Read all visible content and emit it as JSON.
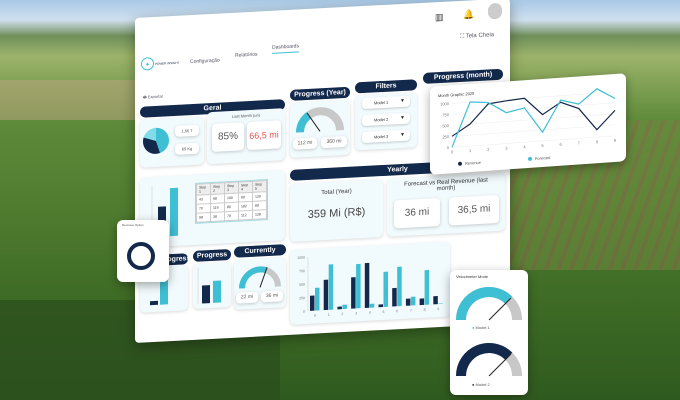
{
  "header": {
    "nav": [
      "Configuração",
      "Relatórios",
      "Dashboards"
    ],
    "active": "Dashboards",
    "brand": "POWER INSIGHT",
    "fullscreen": "Tela Cheia",
    "export": "Exportar",
    "icons": [
      "building-icon",
      "bell-icon",
      "user-avatar-icon"
    ]
  },
  "geral": {
    "title": "Geral",
    "stat1": "1,66 T",
    "stat2": "69 Kg",
    "last_month_label": "Last Month (un)",
    "percent": "85%",
    "value": "66,5 mi",
    "pie": [
      45,
      35,
      20
    ]
  },
  "table": {
    "headers": [
      "Step 1",
      "Step 2",
      "Step 3",
      "Step 4",
      "Step 5"
    ],
    "rows": [
      [
        "43",
        "98",
        "190",
        "90",
        "120"
      ],
      [
        "70",
        "119",
        "80",
        "182",
        "88"
      ],
      [
        "98",
        "38",
        "79",
        "112",
        "128"
      ]
    ]
  },
  "progress_year": {
    "title": "Progress (Year)",
    "fraction": 0.31,
    "current": "112 mi",
    "target": "360 mi"
  },
  "filters": {
    "title": "Filters",
    "options": [
      "Model 1",
      "Model 2",
      "Model 3"
    ]
  },
  "progress_month": {
    "title": "Progress (month)"
  },
  "yearly": {
    "title": "Yearly",
    "total_label": "Total (Year)",
    "total_value": "359 Mi (R$)",
    "forecast_label": "Forecast vs Real Revenue (last month)",
    "forecast": "36 mi",
    "real": "36,5 mi"
  },
  "bottom": {
    "progress1": "Progress",
    "progress2": "Progress",
    "currently": "Currently",
    "current_value": "22 mi",
    "current_target": "36 mi",
    "current_fraction": 0.61
  },
  "radial": {
    "title": "Revenue Option"
  },
  "velocimeter": {
    "title": "Velocimeter Mode",
    "model1": "Model 1",
    "model2": "Model 2",
    "model1_fraction": 0.75,
    "model2_fraction": 0.75
  },
  "colors": {
    "navy": "#13294b",
    "cyan": "#3fbfd3",
    "gray": "#c8c8c8",
    "red": "#e05555"
  },
  "chart_data": [
    {
      "type": "line",
      "title": "Month Graphic 2020",
      "x": [
        0,
        1,
        2,
        3,
        4,
        5,
        6,
        7,
        8,
        9
      ],
      "ylim": [
        0,
        1000
      ],
      "yticks": [
        0,
        250,
        500,
        750,
        1000
      ],
      "series": [
        {
          "name": "Revenue",
          "values": [
            250,
            500,
            930,
            970,
            1000,
            600,
            850,
            680,
            170,
            580
          ]
        },
        {
          "name": "Forecast",
          "values": [
            0,
            1000,
            960,
            700,
            780,
            200,
            900,
            780,
            1100,
            850
          ]
        }
      ],
      "legend": "bottom"
    },
    {
      "type": "bar",
      "categories": [
        "0",
        "1",
        "2",
        "3",
        "4",
        "5",
        "6",
        "7",
        "8",
        "9"
      ],
      "ylim": [
        0,
        1000
      ],
      "yticks": [
        0,
        250,
        500,
        750,
        1000
      ],
      "series": [
        {
          "values": [
            280,
            560,
            50,
            580,
            830,
            50,
            340,
            130,
            120,
            150
          ]
        },
        {
          "values": [
            420,
            840,
            80,
            820,
            70,
            650,
            730,
            160,
            640,
            10
          ]
        }
      ]
    }
  ]
}
